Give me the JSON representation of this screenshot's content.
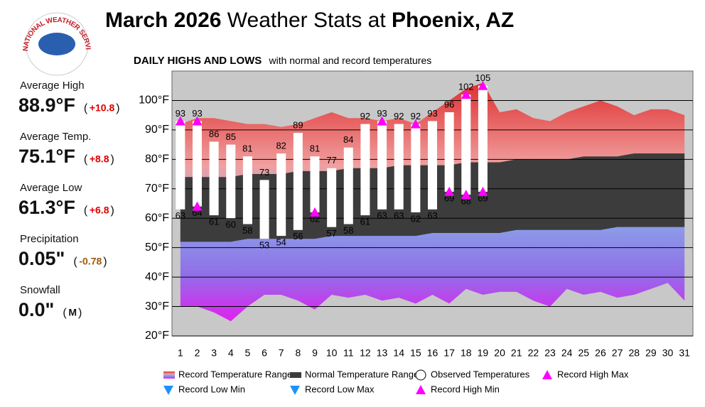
{
  "header": {
    "title_part1": "March 2026",
    "title_part2": "Weather Stats at",
    "title_part3": "Phoenix, AZ",
    "logo_text": "NATIONAL WEATHER SERVICE"
  },
  "stats": [
    {
      "label": "Average High",
      "value": "88.9°F",
      "departure": "+10.8",
      "departure_color": "#e00000"
    },
    {
      "label": "Average Temp.",
      "value": "75.1°F",
      "departure": "+8.8",
      "departure_color": "#e00000"
    },
    {
      "label": "Average Low",
      "value": "61.3°F",
      "departure": "+6.8",
      "departure_color": "#e00000"
    },
    {
      "label": "Precipitation",
      "value": "0.05\"",
      "departure": "-0.78",
      "departure_color": "#a0560a"
    },
    {
      "label": "Snowfall",
      "value": "0.0\"",
      "departure": "M",
      "departure_color": "#111111"
    }
  ],
  "chart_data": {
    "type": "weather-range",
    "title": "DAILY HIGHS AND LOWS",
    "subtitle": "with normal and record temperatures",
    "x": [
      1,
      2,
      3,
      4,
      5,
      6,
      7,
      8,
      9,
      10,
      11,
      12,
      13,
      14,
      15,
      16,
      17,
      18,
      19,
      20,
      21,
      22,
      23,
      24,
      25,
      26,
      27,
      28,
      29,
      30,
      31
    ],
    "xticks": [
      1,
      2,
      3,
      4,
      5,
      6,
      7,
      8,
      9,
      10,
      11,
      12,
      13,
      14,
      15,
      16,
      17,
      18,
      19,
      20,
      21,
      22,
      23,
      24,
      25,
      26,
      27,
      28,
      29,
      30,
      31
    ],
    "xlim": [
      0.5,
      31.5
    ],
    "ylim": [
      20,
      110
    ],
    "yticks": [
      {
        "value": 20,
        "label": "20°F"
      },
      {
        "value": 30,
        "label": "30°F"
      },
      {
        "value": 40,
        "label": "40°F"
      },
      {
        "value": 50,
        "label": "50°F"
      },
      {
        "value": 60,
        "label": "60°F"
      },
      {
        "value": 70,
        "label": "70°F"
      },
      {
        "value": 80,
        "label": "80°F"
      },
      {
        "value": 90,
        "label": "90°F"
      },
      {
        "value": 100,
        "label": "100°F"
      }
    ],
    "grid": true,
    "background": "#c8c8c8",
    "record_range": {
      "name": "Record Temperature Range",
      "color": "#e04848",
      "high": [
        92,
        94,
        94,
        93,
        92,
        92,
        91,
        92,
        94,
        96,
        94,
        94,
        93,
        94,
        92,
        96,
        100,
        104,
        106,
        96,
        97,
        94,
        93,
        96,
        98,
        100,
        98,
        95,
        97,
        97,
        95
      ],
      "low": [
        30,
        30,
        28,
        25,
        30,
        34,
        34,
        32,
        29,
        34,
        33,
        34,
        32,
        33,
        31,
        34,
        31,
        36,
        34,
        35,
        35,
        32,
        30,
        36,
        34,
        35,
        33,
        34,
        36,
        38,
        32
      ]
    },
    "normal_range": {
      "name": "Normal Temperature Range",
      "color": "#3c3c3c",
      "high": [
        74,
        74,
        74,
        74,
        75,
        75,
        75,
        76,
        76,
        76,
        77,
        77,
        77,
        78,
        78,
        78,
        78,
        79,
        79,
        79,
        80,
        80,
        80,
        80,
        81,
        81,
        81,
        82,
        82,
        82,
        82
      ],
      "low": [
        52,
        52,
        52,
        52,
        53,
        53,
        53,
        53,
        53,
        54,
        54,
        54,
        54,
        54,
        54,
        55,
        55,
        55,
        55,
        55,
        56,
        56,
        56,
        56,
        56,
        56,
        57,
        57,
        57,
        57,
        57
      ]
    },
    "observed": {
      "name": "Observed Temperatures",
      "color": "#ffffff",
      "high": [
        93,
        93,
        86,
        85,
        81,
        73,
        82,
        89,
        81,
        77,
        84,
        92,
        93,
        92,
        92,
        93,
        96,
        102,
        105,
        null,
        null,
        null,
        null,
        null,
        null,
        null,
        null,
        null,
        null,
        null,
        null
      ],
      "low": [
        63,
        64,
        61,
        60,
        58,
        53,
        54,
        56,
        62,
        57,
        58,
        61,
        63,
        63,
        62,
        63,
        69,
        68,
        69,
        null,
        null,
        null,
        null,
        null,
        null,
        null,
        null,
        null,
        null,
        null,
        null
      ]
    },
    "series": [
      {
        "name": "Record High Max",
        "color": "#ff00ff",
        "direction": "up",
        "x": [
          1,
          2,
          13,
          15,
          18,
          19
        ],
        "values": [
          93,
          93,
          93,
          92,
          102,
          105
        ]
      },
      {
        "name": "Record Low Min",
        "color": "#1e90ff",
        "direction": "down",
        "x": [],
        "values": []
      },
      {
        "name": "Record Low Max",
        "color": "#1e90ff",
        "direction": "down",
        "x": [],
        "values": []
      },
      {
        "name": "Record High Min",
        "color": "#ff00ff",
        "direction": "up",
        "x": [
          2,
          9,
          17,
          18,
          19
        ],
        "values": [
          64,
          62,
          69,
          68,
          69
        ]
      }
    ]
  }
}
